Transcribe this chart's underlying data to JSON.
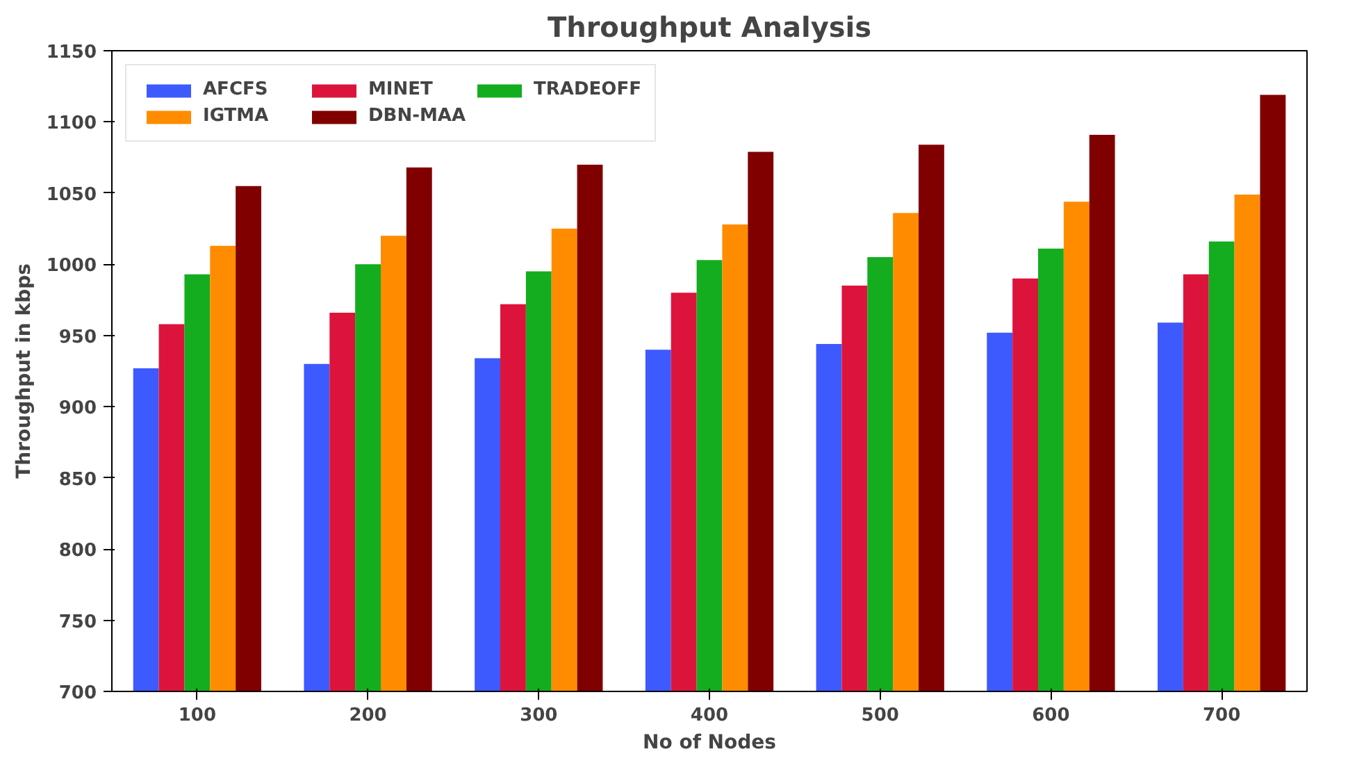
{
  "chart_data": {
    "type": "bar",
    "title": "Throughput Analysis",
    "xlabel": "No of Nodes",
    "ylabel": "Throughput in kbps",
    "categories": [
      "100",
      "200",
      "300",
      "400",
      "500",
      "600",
      "700"
    ],
    "series": [
      {
        "name": "AFCFS",
        "color": "#3d5afe",
        "values": [
          927,
          930,
          934,
          940,
          944,
          952,
          959
        ]
      },
      {
        "name": "MINET",
        "color": "#dc143c",
        "values": [
          958,
          966,
          972,
          980,
          985,
          990,
          993
        ]
      },
      {
        "name": "TRADEOFF",
        "color": "#13ad1f",
        "values": [
          993,
          1000,
          995,
          1003,
          1005,
          1011,
          1016
        ]
      },
      {
        "name": "IGTMA",
        "color": "#ff8c00",
        "values": [
          1013,
          1020,
          1025,
          1028,
          1036,
          1044,
          1049
        ]
      },
      {
        "name": "DBN-MAA",
        "color": "#800000",
        "values": [
          1055,
          1068,
          1070,
          1079,
          1084,
          1091,
          1119
        ]
      }
    ],
    "ylim": [
      700,
      1150
    ],
    "yticks": [
      700,
      750,
      800,
      850,
      900,
      950,
      1000,
      1050,
      1100,
      1150
    ],
    "grid": false,
    "legend": "top left"
  }
}
